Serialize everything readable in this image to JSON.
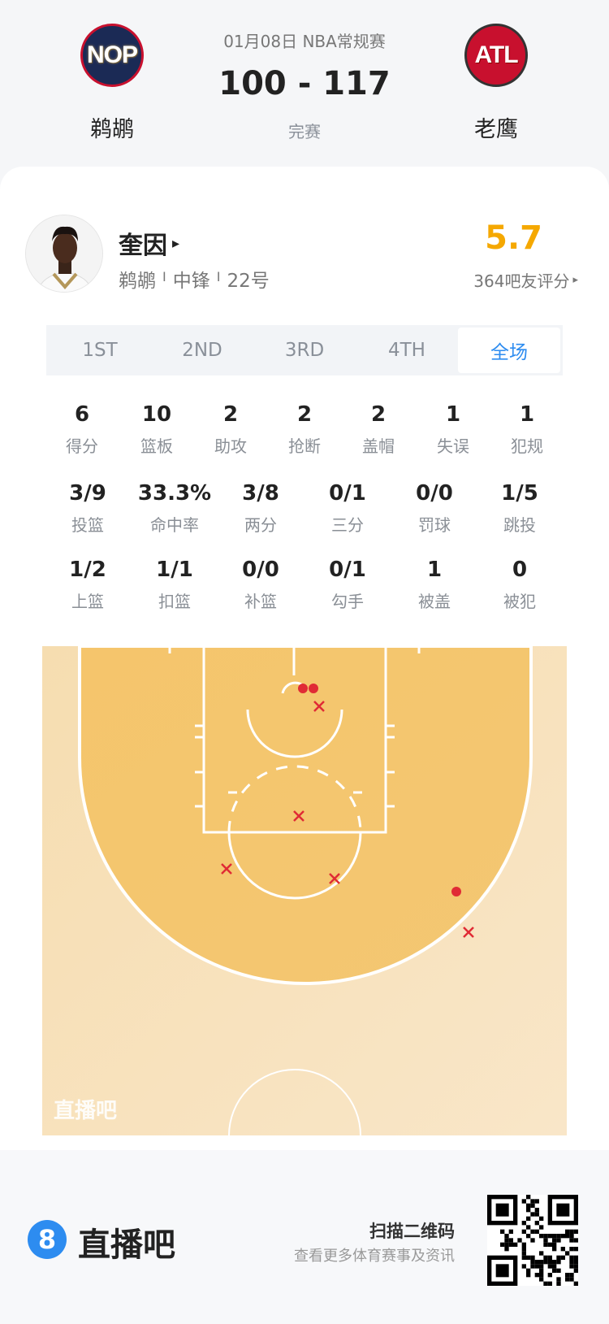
{
  "game": {
    "date_league": "01月08日 NBA常规赛",
    "score": "100 - 117",
    "status": "完赛",
    "home": {
      "abbr": "NOP",
      "name": "鹈鹕"
    },
    "away": {
      "abbr": "ATL",
      "name": "老鹰"
    }
  },
  "player": {
    "name": "奎因",
    "arrow": "▸",
    "team": "鹈鹕",
    "position": "中锋",
    "number": "22号",
    "sep": "I",
    "rating": "5.7",
    "rating_label": "364吧友评分",
    "rating_color": "#F5A800"
  },
  "tabs": [
    {
      "label": "1ST"
    },
    {
      "label": "2ND"
    },
    {
      "label": "3RD"
    },
    {
      "label": "4TH"
    },
    {
      "label": "全场",
      "active": true
    }
  ],
  "stats_row1": [
    {
      "v": "6",
      "l": "得分"
    },
    {
      "v": "10",
      "l": "篮板"
    },
    {
      "v": "2",
      "l": "助攻"
    },
    {
      "v": "2",
      "l": "抢断"
    },
    {
      "v": "2",
      "l": "盖帽"
    },
    {
      "v": "1",
      "l": "失误"
    },
    {
      "v": "1",
      "l": "犯规"
    }
  ],
  "stats_row2": [
    {
      "v": "3/9",
      "l": "投篮"
    },
    {
      "v": "33.3%",
      "l": "命中率"
    },
    {
      "v": "3/8",
      "l": "两分"
    },
    {
      "v": "0/1",
      "l": "三分"
    },
    {
      "v": "0/0",
      "l": "罚球"
    },
    {
      "v": "1/5",
      "l": "跳投"
    }
  ],
  "stats_row3": [
    {
      "v": "1/2",
      "l": "上篮"
    },
    {
      "v": "1/1",
      "l": "扣篮"
    },
    {
      "v": "0/0",
      "l": "补篮"
    },
    {
      "v": "0/1",
      "l": "勾手"
    },
    {
      "v": "1",
      "l": "被盖"
    },
    {
      "v": "0",
      "l": "被犯"
    }
  ],
  "court": {
    "watermark": "直播吧",
    "made_color": "#E02B35",
    "miss_color": "#E02B35",
    "shots": [
      {
        "result": "made"
      },
      {
        "result": "made"
      },
      {
        "result": "made"
      },
      {
        "result": "miss"
      },
      {
        "result": "miss"
      },
      {
        "result": "miss"
      },
      {
        "result": "miss"
      },
      {
        "result": "miss"
      },
      {
        "result": "miss"
      }
    ]
  },
  "footer": {
    "brand_icon": "8",
    "brand": "直播吧",
    "scan_title": "扫描二维码",
    "scan_sub": "查看更多体育赛事及资讯"
  },
  "accent": "#2D8CF0"
}
